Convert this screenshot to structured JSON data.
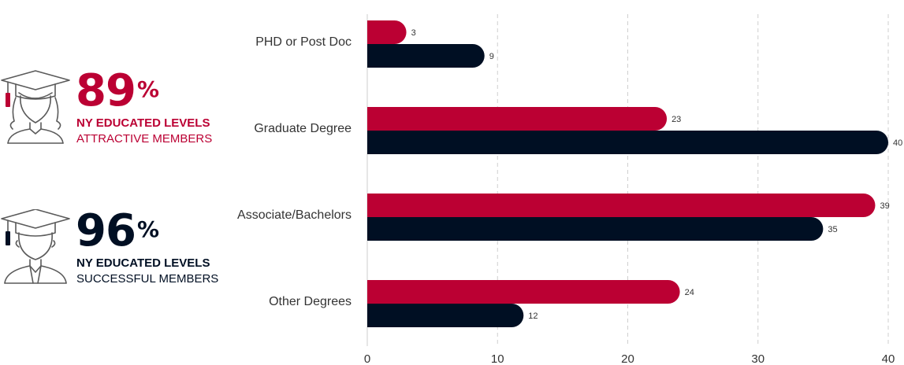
{
  "stats": [
    {
      "number": "89",
      "percent_sign": "%",
      "line1": "NY EDUCATED LEVELS",
      "line2": "ATTRACTIVE MEMBERS",
      "color": "#bb0033",
      "icon": "female-graduate-icon"
    },
    {
      "number": "96",
      "percent_sign": "%",
      "line1": "NY EDUCATED LEVELS",
      "line2": "SUCCESSFUL MEMBERS",
      "color": "#000f23",
      "icon": "male-graduate-icon"
    }
  ],
  "chart_data": {
    "type": "bar",
    "orientation": "horizontal",
    "categories": [
      "PHD or Post Doc",
      "Graduate Degree",
      "Associate/Bachelors",
      "Other Degrees"
    ],
    "series": [
      {
        "values": [
          3,
          23,
          39,
          24
        ],
        "color": "#bb0033"
      },
      {
        "values": [
          9,
          40,
          35,
          12
        ],
        "color": "#000f23"
      }
    ],
    "xlim": [
      0,
      40
    ],
    "xticks": [
      0,
      10,
      20,
      30,
      40
    ],
    "grid": true,
    "title": "",
    "xlabel": "",
    "ylabel": ""
  }
}
